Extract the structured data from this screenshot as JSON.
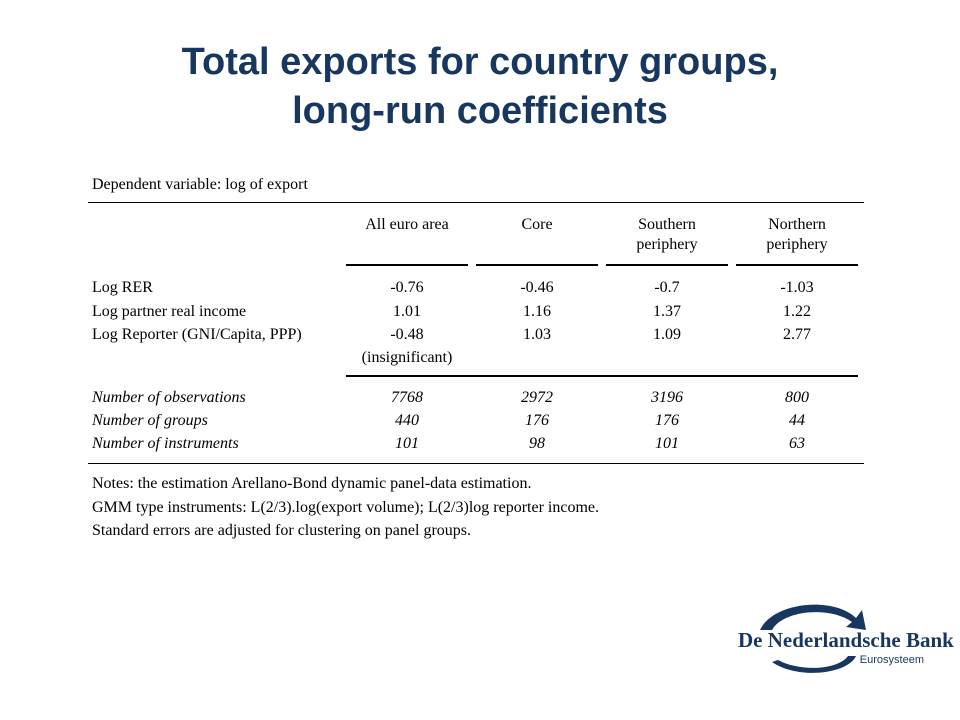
{
  "title": {
    "line1": "Total exports for country groups,",
    "line2": "long-run coefficients"
  },
  "table": {
    "dependent": "Dependent variable: log of export",
    "headers": [
      {
        "line1": "All euro area",
        "line2": ""
      },
      {
        "line1": "Core",
        "line2": ""
      },
      {
        "line1": "Southern",
        "line2": "periphery"
      },
      {
        "line1": "Northern",
        "line2": "periphery"
      }
    ],
    "coef_rows": [
      {
        "label": "Log RER",
        "values": [
          "-0.76",
          "-0.46",
          "-0.7",
          "-1.03"
        ]
      },
      {
        "label": "Log partner real income",
        "values": [
          "1.01",
          "1.16",
          "1.37",
          "1.22"
        ]
      },
      {
        "label": "Log Reporter (GNI/Capita, PPP)",
        "values": [
          "-0.48",
          "1.03",
          "1.09",
          "2.77"
        ]
      }
    ],
    "insignificant_note": "(insignificant)",
    "stat_rows": [
      {
        "label": "Number of observations",
        "values": [
          "7768",
          "2972",
          "3196",
          "800"
        ]
      },
      {
        "label": "Number of groups",
        "values": [
          "440",
          "176",
          "176",
          "44"
        ]
      },
      {
        "label": "Number of instruments",
        "values": [
          "101",
          "98",
          "101",
          "63"
        ]
      }
    ],
    "notes": [
      "Notes: the estimation Arellano-Bond dynamic panel-data estimation.",
      "GMM type instruments: L(2/3).log(export volume); L(2/3)log reporter income.",
      "Standard errors are adjusted for clustering on panel groups."
    ]
  },
  "logo": {
    "name": "De Nederlandsche Bank",
    "sub": "Eurosysteem",
    "color": "#17375E"
  }
}
